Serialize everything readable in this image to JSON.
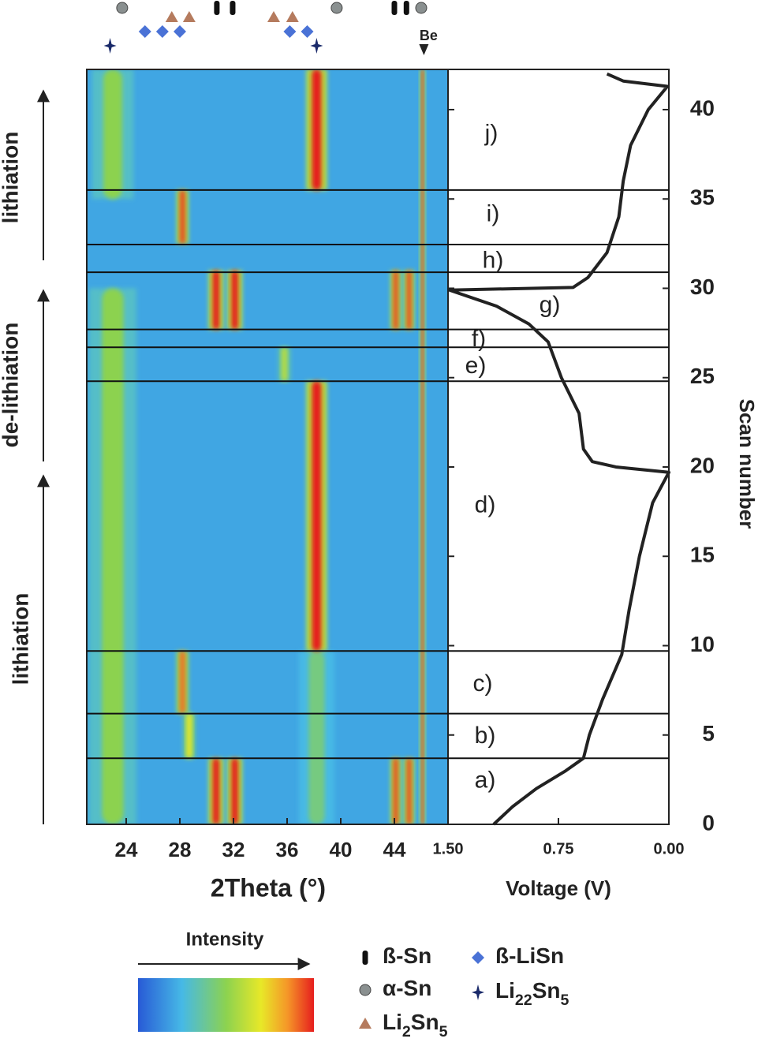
{
  "chart_data": [
    {
      "type": "heatmap",
      "xlabel": "2Theta (°)",
      "xlim": [
        21.06,
        48
      ],
      "ylim": [
        0,
        42.25
      ],
      "xticks": [
        24,
        28,
        32,
        36,
        40,
        44
      ],
      "peaks": [
        {
          "x": 23.0,
          "width": 1.6,
          "from": 0,
          "to": 30,
          "level": 0.5
        },
        {
          "x": 23.0,
          "width": 1.4,
          "from": 35,
          "to": 42.25,
          "level": 0.5
        },
        {
          "x": 38.2,
          "width": 1.2,
          "from": 0,
          "to": 9.7,
          "level": 0.42
        },
        {
          "x": 38.2,
          "width": 0.7,
          "from": 9.7,
          "to": 24.8,
          "level": 1.0
        },
        {
          "x": 38.2,
          "width": 0.7,
          "from": 35.5,
          "to": 42.25,
          "level": 1.0
        },
        {
          "x": 30.7,
          "width": 0.5,
          "from": 0,
          "to": 3.7,
          "level": 1.0
        },
        {
          "x": 32.1,
          "width": 0.5,
          "from": 0,
          "to": 3.7,
          "level": 1.0
        },
        {
          "x": 30.7,
          "width": 0.5,
          "from": 27.7,
          "to": 31,
          "level": 1.0
        },
        {
          "x": 32.1,
          "width": 0.5,
          "from": 27.7,
          "to": 31,
          "level": 1.0
        },
        {
          "x": 44.1,
          "width": 0.35,
          "from": 0,
          "to": 3.7,
          "level": 0.95
        },
        {
          "x": 45.1,
          "width": 0.35,
          "from": 0,
          "to": 3.7,
          "level": 0.95
        },
        {
          "x": 44.1,
          "width": 0.35,
          "from": 27.7,
          "to": 31,
          "level": 0.95
        },
        {
          "x": 45.1,
          "width": 0.35,
          "from": 27.7,
          "to": 31,
          "level": 0.95
        },
        {
          "x": 28.2,
          "width": 0.4,
          "from": 6.2,
          "to": 9.7,
          "level": 0.9
        },
        {
          "x": 28.2,
          "width": 0.4,
          "from": 32.5,
          "to": 35.5,
          "level": 0.95
        },
        {
          "x": 28.7,
          "width": 0.4,
          "from": 3.7,
          "to": 6.2,
          "level": 0.7
        },
        {
          "x": 35.8,
          "width": 0.4,
          "from": 24.8,
          "to": 26.7,
          "level": 0.6
        },
        {
          "x": 46.1,
          "width": 0.15,
          "from": 0,
          "to": 42.25,
          "level": 1.0
        }
      ],
      "boundaries": [
        3.7,
        6.2,
        9.7,
        24.8,
        26.7,
        27.7,
        30.9,
        32.45,
        35.5
      ],
      "side_labels": [
        "lithiation",
        "de-lithiation",
        "lithiation"
      ],
      "colorbar_label": "Intensity",
      "phases": [
        {
          "name": "ß-Sn",
          "color": "#111111",
          "marker": "bar",
          "positions": [
            30.76,
            31.94,
            44.0,
            44.9
          ]
        },
        {
          "name": "α-Sn",
          "color": "#8a9090",
          "marker": "circle",
          "positions": [
            23.7,
            39.7,
            46.0
          ]
        },
        {
          "name": "Li2Sn5",
          "color": "#b57b5e",
          "marker": "triangle",
          "positions": [
            27.4,
            28.7,
            35.0,
            36.4
          ]
        },
        {
          "name": "ß-LiSn",
          "color": "#4a72d6",
          "marker": "diamond",
          "positions": [
            25.4,
            26.7,
            28.0,
            36.2,
            37.5
          ]
        },
        {
          "name": "Li22Sn5",
          "color": "#1a2a6a",
          "marker": "star",
          "positions": [
            22.8,
            38.2
          ]
        }
      ],
      "reference": {
        "name": "Be",
        "position": 46.2
      }
    },
    {
      "type": "line",
      "xlabel": "Voltage (V)",
      "ylabel": "Scan number",
      "xlim": [
        1.5,
        0
      ],
      "ylim": [
        0,
        42.25
      ],
      "xticks": [
        {
          "value": 1.5,
          "label": "1.50"
        },
        {
          "value": 0.75,
          "label": "0.75"
        },
        {
          "value": 0,
          "label": "0.00"
        }
      ],
      "yticks": [
        0,
        5,
        10,
        15,
        20,
        25,
        30,
        35,
        40
      ],
      "annotations": [
        "a)",
        "b)",
        "c)",
        "d)",
        "e)",
        "f)",
        "g)",
        "h)",
        "i)",
        "j)"
      ],
      "series": [
        {
          "color": "#222222",
          "x": [
            1.19,
            1.06,
            0.9,
            0.7,
            0.58,
            0.54,
            0.45,
            0.32,
            0.27,
            0.2,
            0.11,
            0.0,
            0.36,
            0.52,
            0.58,
            0.61,
            0.73,
            0.82,
            0.95,
            1.17,
            1.49,
            0.65,
            0.55,
            0.42,
            0.34,
            0.31,
            0.26,
            0.14,
            0.01,
            0.31,
            0.42
          ],
          "y": [
            0,
            1,
            2,
            3,
            3.7,
            5,
            7,
            9.5,
            12,
            15,
            18,
            19.7,
            20,
            20.3,
            21,
            23,
            25,
            27,
            28,
            29,
            29.9,
            30.05,
            30.6,
            32,
            34,
            36,
            38,
            40,
            41.3,
            41.6,
            42
          ]
        }
      ]
    }
  ]
}
